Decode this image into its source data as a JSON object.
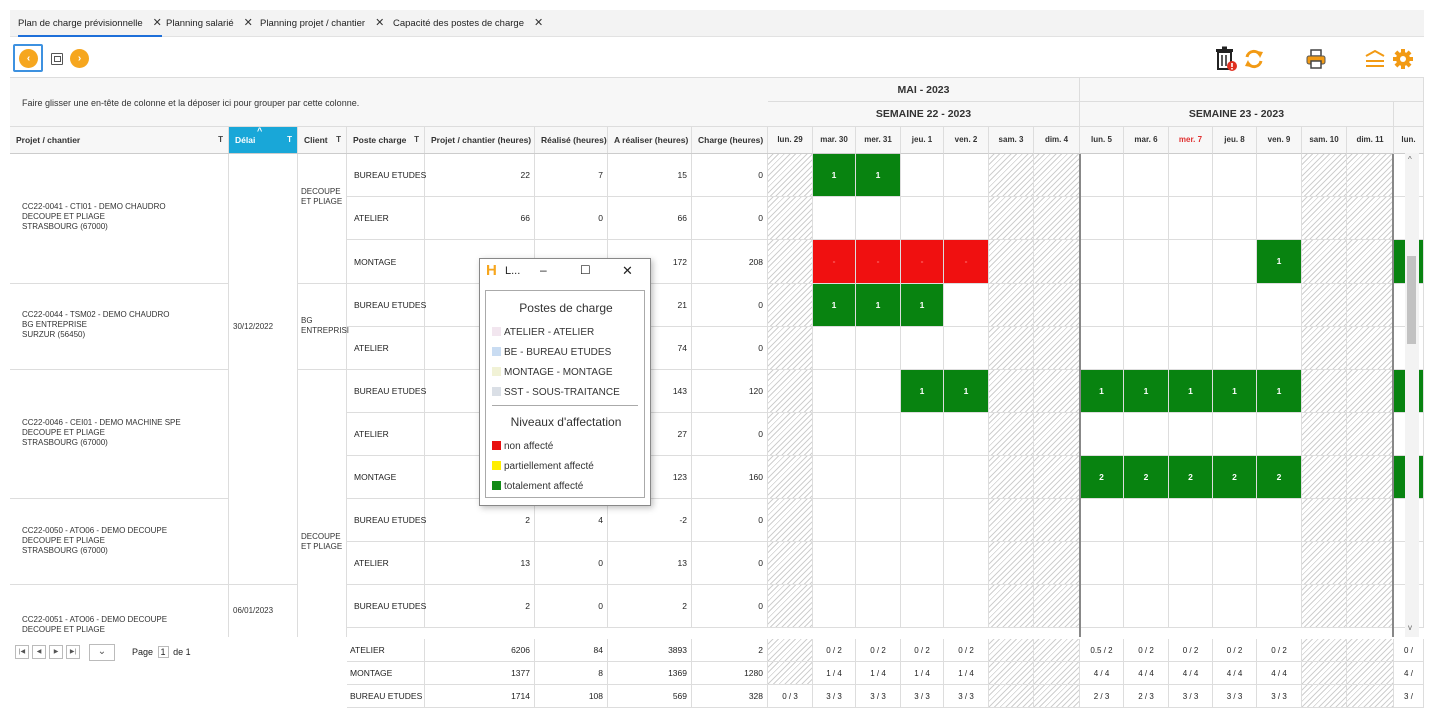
{
  "tabs": [
    {
      "label": "Plan de charge prévisionnelle",
      "close": "✕"
    },
    {
      "label": "Planning salarié",
      "close": "✕"
    },
    {
      "label": "Planning projet / chantier",
      "close": "✕"
    },
    {
      "label": "Capacité des postes de charge",
      "close": "✕"
    }
  ],
  "toolbar": {
    "prev": "‹",
    "next": "›"
  },
  "grid": {
    "group_panel_text": "Faire glisser une en-tête de colonne et la déposer ici pour grouper par cette colonne.",
    "columns": [
      "Projet / chantier",
      "Délai",
      "Client",
      "Poste charge",
      "Projet / chantier (heures)",
      "Réalisé (heures)",
      "A réaliser (heures)",
      "Charge (heures)"
    ],
    "sort_indicator": "^",
    "filter_icon": "T",
    "projects": [
      {
        "lines": [
          "CC22-0041 - CTI01 - DEMO CHAUDRO",
          "DECOUPE ET PLIAGE",
          "STRASBOURG (67000)"
        ]
      },
      {
        "lines": [
          "CC22-0044 - TSM02 - DEMO CHAUDRO",
          "BG ENTREPRISE",
          "SURZUR (56450)"
        ]
      },
      {
        "lines": [
          "CC22-0046 - CEI01 - DEMO MACHINE SPE",
          "DECOUPE ET PLIAGE",
          "STRASBOURG (67000)"
        ]
      },
      {
        "lines": [
          "CC22-0050 - ATO06 - DEMO DECOUPE",
          "DECOUPE ET PLIAGE",
          "STRASBOURG (67000)"
        ]
      },
      {
        "lines": [
          "CC22-0051 - ATO06 - DEMO DECOUPE",
          "DECOUPE ET PLIAGE"
        ]
      }
    ],
    "delais": [
      "30/12/2022",
      "06/01/2023"
    ],
    "clients": [
      {
        "lines": [
          "DECOUPE",
          "ET PLIAGE"
        ]
      },
      {
        "lines": [
          "BG",
          "ENTREPRISI"
        ]
      },
      {
        "lines": [
          "DECOUPE",
          "ET PLIAGE"
        ]
      }
    ],
    "rows": [
      {
        "poste": "BUREAU ETUDES",
        "projet": "22",
        "realise": "7",
        "areal": "15",
        "charge": "0"
      },
      {
        "poste": "ATELIER",
        "projet": "66",
        "realise": "0",
        "areal": "66",
        "charge": "0"
      },
      {
        "poste": "MONTAGE",
        "projet": "",
        "realise": "",
        "areal": "172",
        "charge": "208"
      },
      {
        "poste": "BUREAU ETUDES",
        "projet": "",
        "realise": "",
        "areal": "21",
        "charge": "0"
      },
      {
        "poste": "ATELIER",
        "projet": "",
        "realise": "",
        "areal": "74",
        "charge": "0"
      },
      {
        "poste": "BUREAU ETUDES",
        "projet": "",
        "realise": "",
        "areal": "143",
        "charge": "120"
      },
      {
        "poste": "ATELIER",
        "projet": "",
        "realise": "",
        "areal": "27",
        "charge": "0"
      },
      {
        "poste": "MONTAGE",
        "projet": "",
        "realise": "",
        "areal": "123",
        "charge": "160"
      },
      {
        "poste": "BUREAU ETUDES",
        "projet": "2",
        "realise": "4",
        "areal": "-2",
        "charge": "0"
      },
      {
        "poste": "ATELIER",
        "projet": "13",
        "realise": "0",
        "areal": "13",
        "charge": "0"
      },
      {
        "poste": "BUREAU ETUDES",
        "projet": "2",
        "realise": "0",
        "areal": "2",
        "charge": "0"
      }
    ]
  },
  "gantt": {
    "month": "MAI - 2023",
    "weeks": [
      "SEMAINE 22 - 2023",
      "SEMAINE 23 - 2023"
    ],
    "days": [
      "lun. 29",
      "mar. 30",
      "mer. 31",
      "jeu. 1",
      "ven. 2",
      "sam. 3",
      "dim. 4",
      "lun. 5",
      "mar. 6",
      "mer. 7",
      "jeu. 8",
      "ven. 9",
      "sam. 10",
      "dim. 11",
      "lun."
    ],
    "bars": [
      {
        "row": 0,
        "day": 1,
        "label": "1",
        "color": "green"
      },
      {
        "row": 0,
        "day": 2,
        "label": "1",
        "color": "green"
      },
      {
        "row": 2,
        "day": 1,
        "label": "-",
        "color": "red"
      },
      {
        "row": 2,
        "day": 2,
        "label": "-",
        "color": "red"
      },
      {
        "row": 2,
        "day": 3,
        "label": "-",
        "color": "red"
      },
      {
        "row": 2,
        "day": 4,
        "label": "-",
        "color": "red"
      },
      {
        "row": 2,
        "day": 11,
        "label": "1",
        "color": "green"
      },
      {
        "row": 2,
        "day": 14,
        "label": "",
        "color": "green"
      },
      {
        "row": 3,
        "day": 1,
        "label": "1",
        "color": "green"
      },
      {
        "row": 3,
        "day": 2,
        "label": "1",
        "color": "green"
      },
      {
        "row": 3,
        "day": 3,
        "label": "1",
        "color": "green"
      },
      {
        "row": 5,
        "day": 3,
        "label": "1",
        "color": "green"
      },
      {
        "row": 5,
        "day": 4,
        "label": "1",
        "color": "green"
      },
      {
        "row": 5,
        "day": 7,
        "label": "1",
        "color": "green"
      },
      {
        "row": 5,
        "day": 8,
        "label": "1",
        "color": "green"
      },
      {
        "row": 5,
        "day": 9,
        "label": "1",
        "color": "green"
      },
      {
        "row": 5,
        "day": 10,
        "label": "1",
        "color": "green"
      },
      {
        "row": 5,
        "day": 11,
        "label": "1",
        "color": "green"
      },
      {
        "row": 5,
        "day": 14,
        "label": "",
        "color": "green"
      },
      {
        "row": 7,
        "day": 7,
        "label": "2",
        "color": "green"
      },
      {
        "row": 7,
        "day": 8,
        "label": "2",
        "color": "green"
      },
      {
        "row": 7,
        "day": 9,
        "label": "2",
        "color": "green"
      },
      {
        "row": 7,
        "day": 10,
        "label": "2",
        "color": "green"
      },
      {
        "row": 7,
        "day": 11,
        "label": "2",
        "color": "green"
      },
      {
        "row": 7,
        "day": 14,
        "label": "",
        "color": "green"
      }
    ]
  },
  "pager": {
    "first": "|◀",
    "prev": "◀",
    "next": "▶",
    "last": "▶|",
    "dropdown": "⌄",
    "page_label": "Page",
    "page_value": "1",
    "of_label": "de 1"
  },
  "summary": [
    {
      "poste": "ATELIER",
      "projet": "6206",
      "realise": "84",
      "areal": "3893",
      "charge": "2",
      "days": [
        "",
        "0 / 2",
        "0 / 2",
        "0 / 2",
        "0 / 2",
        "",
        "",
        "0.5 / 2",
        "0 / 2",
        "0 / 2",
        "0 / 2",
        "0 / 2",
        "",
        "",
        "0 /"
      ]
    },
    {
      "poste": "MONTAGE",
      "projet": "1377",
      "realise": "8",
      "areal": "1369",
      "charge": "1280",
      "days": [
        "",
        "1 / 4",
        "1 / 4",
        "1 / 4",
        "1 / 4",
        "",
        "",
        "4 / 4",
        "4 / 4",
        "4 / 4",
        "4 / 4",
        "4 / 4",
        "",
        "",
        "4 /"
      ]
    },
    {
      "poste": "BUREAU ETUDES",
      "projet": "1714",
      "realise": "108",
      "areal": "569",
      "charge": "328",
      "days": [
        "0 / 3",
        "3 / 3",
        "3 / 3",
        "3 / 3",
        "3 / 3",
        "",
        "",
        "2 / 3",
        "2 / 3",
        "3 / 3",
        "3 / 3",
        "3 / 3",
        "",
        "",
        "3 /"
      ]
    }
  ],
  "popup": {
    "title": "L...",
    "logo": "H",
    "min": "–",
    "max": "☐",
    "close": "✕",
    "section1": "Postes de charge",
    "postes": [
      {
        "label": "ATELIER - ATELIER",
        "color": "#f2e6ef"
      },
      {
        "label": "BE - BUREAU ETUDES",
        "color": "#c9dcf2"
      },
      {
        "label": "MONTAGE - MONTAGE",
        "color": "#f1f2d6"
      },
      {
        "label": "SST - SOUS-TRAITANCE",
        "color": "#dadfe6"
      }
    ],
    "section2": "Niveaux d'affectation",
    "niveaux": [
      {
        "label": "non affecté",
        "color": "#e81010"
      },
      {
        "label": "partiellement affecté",
        "color": "#ffee00"
      },
      {
        "label": "totalement affecté",
        "color": "#118a16"
      }
    ]
  }
}
